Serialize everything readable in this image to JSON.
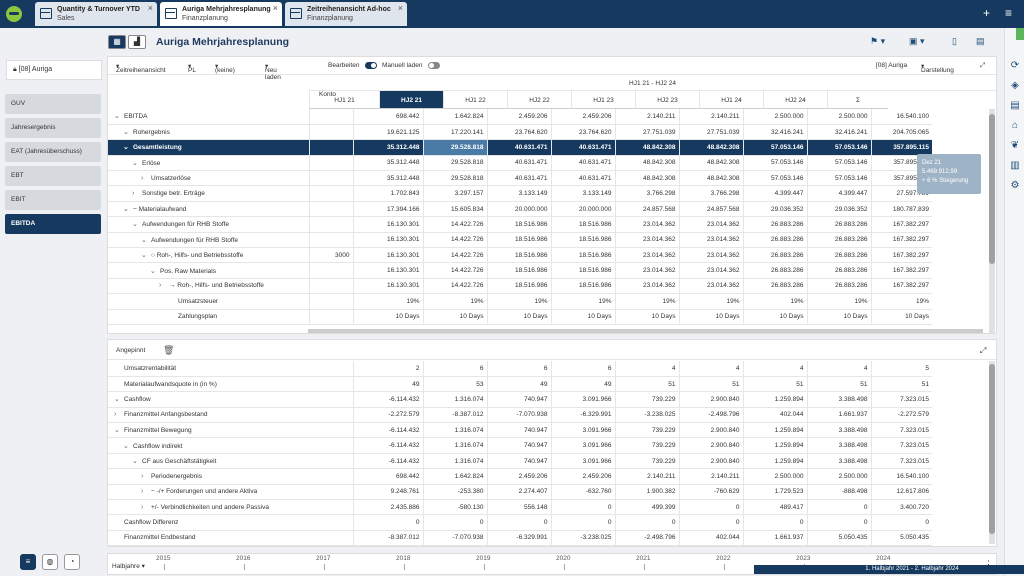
{
  "tabs": [
    {
      "title": "Quantity & Turnover YTD",
      "sub": "Sales"
    },
    {
      "title": "Auriga Mehrjahresplanung",
      "sub": "Finanzplanung"
    },
    {
      "title": "Zeitreihenansicht Ad-hoc",
      "sub": "Finanzplanung"
    }
  ],
  "page_title": "Auriga Mehrjahresplanung",
  "left": {
    "lock_label": "[08] Auriga",
    "items": [
      "GUV",
      "Jahresergebnis",
      "EAT (Jahresüberschuss)",
      "EBT",
      "EBIT",
      "EBITDA"
    ]
  },
  "toolbar": {
    "view": "Zeitreihenansicht",
    "pl": "PL",
    "keine": "(keine)",
    "reload": "Neu laden",
    "edit": "Bearbeiten",
    "manual": "Manuell laden",
    "entity": "[08] Auriga",
    "display": "Darstellung"
  },
  "grid": {
    "group_header": "HJ1 21 - HJ2 24",
    "konto_header": "Konto",
    "columns": [
      "HJ1 21",
      "HJ2 21",
      "HJ1 22",
      "HJ2 22",
      "HJ1 23",
      "HJ2 23",
      "HJ1 24",
      "HJ2 24",
      "Σ"
    ],
    "rows": [
      {
        "label": "EBITDA",
        "ind": 0,
        "ex": "v",
        "konto": "",
        "v": [
          "698.442",
          "1.642.824",
          "2.459.206",
          "2.459.206",
          "2.140.211",
          "2.140.211",
          "2.500.000",
          "2.500.000",
          "16.540.100"
        ]
      },
      {
        "label": "Rohergebnis",
        "ind": 1,
        "ex": "v",
        "konto": "",
        "v": [
          "19.621.125",
          "17.220.141",
          "23.764.620",
          "23.764.620",
          "27.751.039",
          "27.751.039",
          "32.416.241",
          "32.416.241",
          "204.705.065"
        ]
      },
      {
        "label": "Gesamtleistung",
        "ind": 1,
        "ex": "v",
        "konto": "",
        "v": [
          "35.312.448",
          "29.528.818",
          "40.631.471",
          "40.631.471",
          "48.842.308",
          "48.842.308",
          "57.053.146",
          "57.053.146",
          "357.895.115"
        ]
      },
      {
        "label": "Erlöse",
        "ind": 2,
        "ex": "v",
        "konto": "",
        "v": [
          "35.312.448",
          "29.528.818",
          "40.631.471",
          "40.631.471",
          "48.842.308",
          "48.842.308",
          "57.053.146",
          "57.053.146",
          "357.895.115"
        ]
      },
      {
        "label": "Umsatzerlöse",
        "ind": 3,
        "ex": ">",
        "konto": "",
        "v": [
          "35.312.448",
          "29.528.818",
          "40.631.471",
          "40.631.471",
          "48.842.308",
          "48.842.308",
          "57.053.146",
          "57.053.146",
          "357.895.115"
        ]
      },
      {
        "label": "Sonstige betr. Erträge",
        "ind": 2,
        "ex": ">",
        "konto": "",
        "v": [
          "1.702.843",
          "3.297.157",
          "3.133.149",
          "3.133.149",
          "3.766.298",
          "3.766.298",
          "4.399.447",
          "4.399.447",
          "27.597.789"
        ]
      },
      {
        "label": "− Materialaufwand",
        "ind": 1,
        "ex": "v",
        "konto": "",
        "v": [
          "17.394.166",
          "15.605.834",
          "20.000.000",
          "20.000.000",
          "24.857.568",
          "24.857.568",
          "29.036.352",
          "29.036.352",
          "180.787.839"
        ]
      },
      {
        "label": "Aufwendungen für RHB Stoffe",
        "ind": 2,
        "ex": "v",
        "konto": "",
        "v": [
          "16.130.301",
          "14.422.726",
          "18.516.986",
          "18.516.986",
          "23.014.362",
          "23.014.362",
          "26.883.286",
          "26.883.286",
          "167.382.297"
        ]
      },
      {
        "label": "Aufwendungen für RHB Stoffe",
        "ind": 3,
        "ex": "v",
        "konto": "",
        "v": [
          "16.130.301",
          "14.422.726",
          "18.516.986",
          "18.516.986",
          "23.014.362",
          "23.014.362",
          "26.883.286",
          "26.883.286",
          "167.382.297"
        ]
      },
      {
        "label": "○ Roh-, Hilfs- und Betriebsstoffe",
        "ind": 3,
        "ex": "v",
        "konto": "3000",
        "v": [
          "16.130.301",
          "14.422.726",
          "18.516.986",
          "18.516.986",
          "23.014.362",
          "23.014.362",
          "26.883.286",
          "26.883.286",
          "167.382.297"
        ]
      },
      {
        "label": "Pos. Raw Materials",
        "ind": 4,
        "ex": "v",
        "konto": "",
        "v": [
          "16.130.301",
          "14.422.726",
          "18.516.986",
          "18.516.986",
          "23.014.362",
          "23.014.362",
          "26.883.286",
          "26.883.286",
          "167.382.297"
        ]
      },
      {
        "label": "→ Roh-, Hilfs- und Betriebsstoffe",
        "ind": 5,
        "ex": ">",
        "konto": "",
        "v": [
          "16.130.301",
          "14.422.726",
          "18.516.986",
          "18.516.986",
          "23.014.362",
          "23.014.362",
          "26.883.286",
          "26.883.286",
          "167.382.297"
        ]
      },
      {
        "label": "Umsatzsteuer",
        "ind": 6,
        "ex": "",
        "konto": "",
        "v": [
          "19%",
          "19%",
          "19%",
          "19%",
          "19%",
          "19%",
          "19%",
          "19%",
          "19%"
        ]
      },
      {
        "label": "Zahlungsplan",
        "ind": 6,
        "ex": "",
        "konto": "",
        "v": [
          "10 Days",
          "10 Days",
          "10 Days",
          "10 Days",
          "10 Days",
          "10 Days",
          "10 Days",
          "10 Days",
          "10 Days"
        ]
      }
    ]
  },
  "tooltip": {
    "l1": "Dez 21",
    "l2": "5.469.912,99",
    "l3": "+ 6 % Steigerung"
  },
  "pinned": {
    "label": "Angepinnt",
    "rows": [
      {
        "label": "Umsatzrentabilität",
        "ind": 0,
        "ex": "",
        "v": [
          "2",
          "6",
          "6",
          "6",
          "4",
          "4",
          "4",
          "4",
          "5"
        ]
      },
      {
        "label": "Materialaufwandsquote in (in %)",
        "ind": 0,
        "ex": "",
        "v": [
          "49",
          "53",
          "49",
          "49",
          "51",
          "51",
          "51",
          "51",
          "51"
        ]
      },
      {
        "label": "Cashflow",
        "ind": 0,
        "ex": "v",
        "v": [
          "-6.114.432",
          "1.316.074",
          "740.947",
          "3.091.966",
          "739.229",
          "2.900.840",
          "1.259.894",
          "3.388.498",
          "7.323.015"
        ]
      },
      {
        "label": "Finanzmittel Anfangsbestand",
        "ind": 0,
        "ex": ">",
        "v": [
          "-2.272.579",
          "-8.387.012",
          "-7.070.938",
          "-6.329.991",
          "-3.238.025",
          "-2.498.796",
          "402.044",
          "1.661.937",
          "-2.272.579"
        ]
      },
      {
        "label": "Finanzmittel Bewegung",
        "ind": 0,
        "ex": "v",
        "v": [
          "-6.114.432",
          "1.316.074",
          "740.947",
          "3.091.966",
          "739.229",
          "2.900.840",
          "1.259.894",
          "3.388.498",
          "7.323.015"
        ]
      },
      {
        "label": "Cashflow indirekt",
        "ind": 1,
        "ex": "v",
        "v": [
          "-6.114.432",
          "1.316.074",
          "740.947",
          "3.091.966",
          "739.229",
          "2.900.840",
          "1.259.894",
          "3.388.498",
          "7.323.015"
        ]
      },
      {
        "label": "CF aus Geschäftstätigkeit",
        "ind": 2,
        "ex": "v",
        "v": [
          "-6.114.432",
          "1.316.074",
          "740.947",
          "3.091.966",
          "739.229",
          "2.900.840",
          "1.259.894",
          "3.388.498",
          "7.323.015"
        ]
      },
      {
        "label": "Periodenergebnis",
        "ind": 3,
        "ex": ">",
        "v": [
          "698.442",
          "1.642.824",
          "2.459.206",
          "2.459.206",
          "2.140.211",
          "2.140.211",
          "2.500.000",
          "2.500.000",
          "16.540.100"
        ]
      },
      {
        "label": "− -/+ Forderungen und andere Aktiva",
        "ind": 3,
        "ex": ">",
        "v": [
          "9.248.761",
          "-253.380",
          "2.274.407",
          "-632.760",
          "1.900.382",
          "-760.629",
          "1.729.523",
          "-888.498",
          "12.617.806"
        ]
      },
      {
        "label": "+/- Verbindlichkeiten und andere Passiva",
        "ind": 3,
        "ex": ">",
        "v": [
          "2.435.886",
          "-580.130",
          "556.148",
          "0",
          "499.399",
          "0",
          "489.417",
          "0",
          "3.400.720"
        ]
      },
      {
        "label": "Cashflow Differenz",
        "ind": 0,
        "ex": "",
        "v": [
          "0",
          "0",
          "0",
          "0",
          "0",
          "0",
          "0",
          "0",
          "0"
        ]
      },
      {
        "label": "Finanzmittel Endbestand",
        "ind": 0,
        "ex": "",
        "v": [
          "-8.387.012",
          "-7.070.938",
          "-6.329.991",
          "-3.238.025",
          "-2.498.796",
          "402.044",
          "1.661.937",
          "5.050.435",
          "5.050.435"
        ]
      }
    ]
  },
  "timeline": {
    "label": "Halbjahre",
    "years": [
      "2015",
      "2016",
      "2017",
      "2018",
      "2019",
      "2020",
      "2021",
      "2022",
      "2023",
      "2024"
    ],
    "range": "1. Halbjahr 2021 - 2. Halbjahr 2024"
  }
}
